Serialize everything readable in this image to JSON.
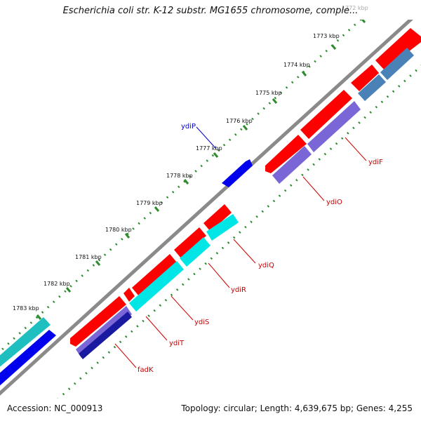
{
  "map": {
    "title": "Escherichia coli str. K-12 substr. MG1655 chromosome, comple...",
    "accession_text": "Accession: NC_000913",
    "topology_text": "Topology: circular; Length: 4,639,675 bp; Genes: 4,255",
    "ticks": [
      "1772 kbp",
      "1773 kbp",
      "1774 kbp",
      "1775 kbp",
      "1776 kbp",
      "1777 kbp",
      "1778 kbp",
      "1779 kbp",
      "1780 kbp",
      "1781 kbp",
      "1782 kbp",
      "1783 kbp"
    ],
    "gene_labels": [
      {
        "name": "ydiP",
        "color": "#0000cc"
      },
      {
        "name": "ydiF",
        "color": "#cc0000"
      },
      {
        "name": "ydiO",
        "color": "#cc0000"
      },
      {
        "name": "ydiQ",
        "color": "#cc0000"
      },
      {
        "name": "ydiR",
        "color": "#cc0000"
      },
      {
        "name": "ydiS",
        "color": "#cc0000"
      },
      {
        "name": "ydiT",
        "color": "#cc0000"
      },
      {
        "name": "fadK",
        "color": "#cc0000"
      }
    ],
    "colors": {
      "cds": "#ff0000",
      "gene_forward": "#0000ee",
      "gene_purple": "#7a66d6",
      "gene_cyan": "#00e5e5",
      "gene_steel": "#4a82b8",
      "gene_teal": "#1fbfbf",
      "gene_navy": "#1a1aa0",
      "backbone": "#888888",
      "tick": "#2e8b2e"
    }
  }
}
